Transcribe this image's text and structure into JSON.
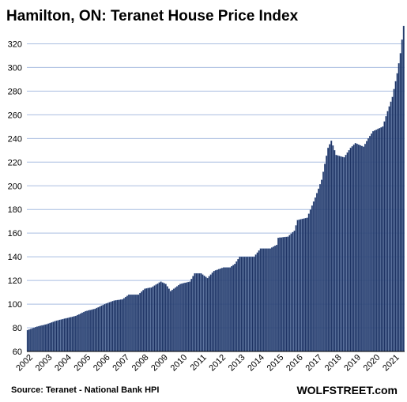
{
  "title": "Hamilton, ON: Teranet House Price Index",
  "source": "Source: Teranet - National Bank HPI",
  "brand": "WOLFSTREET.com",
  "colors": {
    "bar": "#1e3363",
    "bar_edge": "#4f6da0",
    "grid": "#a9bde0",
    "axis": "#000000"
  },
  "chart_data": {
    "type": "bar",
    "title": "Hamilton, ON: Teranet House Price Index",
    "xlabel": "",
    "ylabel": "",
    "ylim": [
      60,
      335
    ],
    "yticks": [
      60,
      80,
      100,
      120,
      140,
      160,
      180,
      200,
      220,
      240,
      260,
      280,
      300,
      320
    ],
    "grid": true,
    "frequency": "monthly",
    "start": "2002-01",
    "end": "2021-07",
    "x_tick_labels": [
      "2002",
      "2003",
      "2004",
      "2005",
      "2006",
      "2007",
      "2008",
      "2009",
      "2010",
      "2011",
      "2012",
      "2013",
      "2014",
      "2015",
      "2016",
      "2017",
      "2018",
      "2019",
      "2020",
      "2021"
    ],
    "anchors": [
      [
        "2002-01",
        78
      ],
      [
        "2002-07",
        81
      ],
      [
        "2003-01",
        83
      ],
      [
        "2003-07",
        86
      ],
      [
        "2004-01",
        88
      ],
      [
        "2004-07",
        90
      ],
      [
        "2005-01",
        94
      ],
      [
        "2005-07",
        96
      ],
      [
        "2006-01",
        100
      ],
      [
        "2006-07",
        103
      ],
      [
        "2006-12",
        104
      ],
      [
        "2007-04",
        108
      ],
      [
        "2007-10",
        108
      ],
      [
        "2008-02",
        113
      ],
      [
        "2008-06",
        114
      ],
      [
        "2008-12",
        119
      ],
      [
        "2009-03",
        117
      ],
      [
        "2009-06",
        111
      ],
      [
        "2009-12",
        117
      ],
      [
        "2010-06",
        119
      ],
      [
        "2010-09",
        126
      ],
      [
        "2011-01",
        126
      ],
      [
        "2011-05",
        122
      ],
      [
        "2011-09",
        128
      ],
      [
        "2012-03",
        131
      ],
      [
        "2012-07",
        131
      ],
      [
        "2012-10",
        134
      ],
      [
        "2013-01",
        140
      ],
      [
        "2013-07",
        140
      ],
      [
        "2013-10",
        140
      ],
      [
        "2014-02",
        147
      ],
      [
        "2014-08",
        147
      ],
      [
        "2014-12",
        150
      ],
      [
        "2015-01",
        156
      ],
      [
        "2015-07",
        157
      ],
      [
        "2015-11",
        162
      ],
      [
        "2016-01",
        171
      ],
      [
        "2016-07",
        173
      ],
      [
        "2016-12",
        190
      ],
      [
        "2017-04",
        205
      ],
      [
        "2017-08",
        232
      ],
      [
        "2017-10",
        238
      ],
      [
        "2018-01",
        226
      ],
      [
        "2018-06",
        224
      ],
      [
        "2018-10",
        232
      ],
      [
        "2019-01",
        236
      ],
      [
        "2019-06",
        233
      ],
      [
        "2019-09",
        240
      ],
      [
        "2019-12",
        246
      ],
      [
        "2020-03",
        248
      ],
      [
        "2020-06",
        250
      ],
      [
        "2020-09",
        263
      ],
      [
        "2020-12",
        275
      ],
      [
        "2021-03",
        295
      ],
      [
        "2021-05",
        312
      ],
      [
        "2021-07",
        335
      ]
    ]
  }
}
